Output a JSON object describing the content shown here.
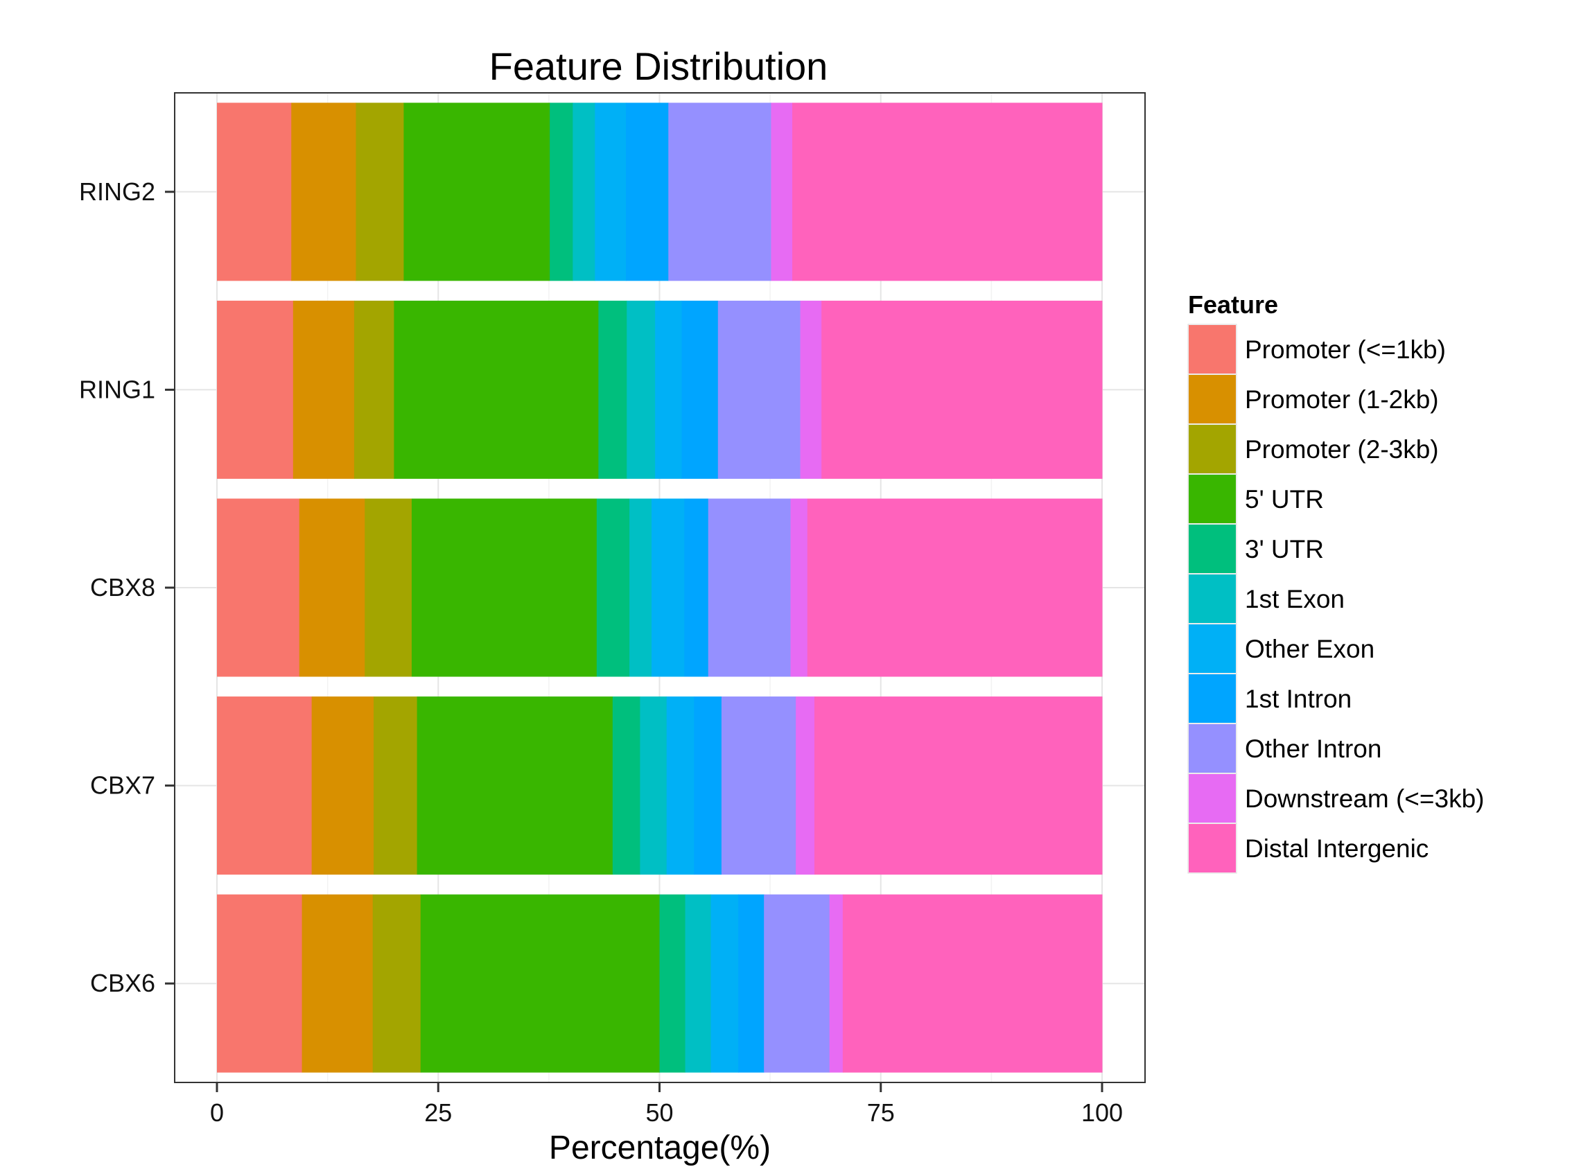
{
  "chart_data": {
    "type": "bar",
    "orientation": "horizontal",
    "stacked": true,
    "title": "Feature Distribution",
    "xlabel": "Percentage(%)",
    "ylabel": "",
    "xlim": [
      0,
      100
    ],
    "xticks": [
      "0",
      "25",
      "50",
      "75",
      "100"
    ],
    "grid": true,
    "legend_title": "Feature",
    "legend_position": "right",
    "categories": [
      "RING2",
      "RING1",
      "CBX8",
      "CBX7",
      "CBX6"
    ],
    "series": [
      {
        "name": "Promoter (<=1kb)",
        "color": "#F8766D",
        "values": [
          8.4,
          8.6,
          9.3,
          10.7,
          9.6
        ]
      },
      {
        "name": "Promoter (1-2kb)",
        "color": "#D89000",
        "values": [
          7.3,
          6.9,
          7.4,
          7.0,
          8.0
        ]
      },
      {
        "name": "Promoter (2-3kb)",
        "color": "#A3A500",
        "values": [
          5.4,
          4.5,
          5.3,
          4.9,
          5.4
        ]
      },
      {
        "name": "5' UTR",
        "color": "#39B600",
        "values": [
          16.5,
          23.1,
          20.9,
          22.1,
          27.0
        ]
      },
      {
        "name": "3' UTR",
        "color": "#00BF7D",
        "values": [
          2.6,
          3.2,
          3.7,
          3.1,
          2.9
        ]
      },
      {
        "name": "1st Exon",
        "color": "#00BFC4",
        "values": [
          2.5,
          3.2,
          2.5,
          3.0,
          2.9
        ]
      },
      {
        "name": "Other Exon",
        "color": "#00B0F6",
        "values": [
          3.5,
          3.0,
          3.7,
          3.1,
          3.1
        ]
      },
      {
        "name": "1st Intron",
        "color": "#00A5FF",
        "values": [
          4.8,
          4.1,
          2.7,
          3.1,
          2.9
        ]
      },
      {
        "name": "Other Intron",
        "color": "#9590FF",
        "values": [
          11.6,
          9.3,
          9.3,
          8.4,
          7.4
        ]
      },
      {
        "name": "Downstream (<=3kb)",
        "color": "#E76BF3",
        "values": [
          2.4,
          2.4,
          1.9,
          2.1,
          1.5
        ]
      },
      {
        "name": "Distal Intergenic",
        "color": "#FF62BC",
        "values": [
          35.0,
          31.7,
          33.3,
          32.5,
          29.3
        ]
      }
    ]
  }
}
